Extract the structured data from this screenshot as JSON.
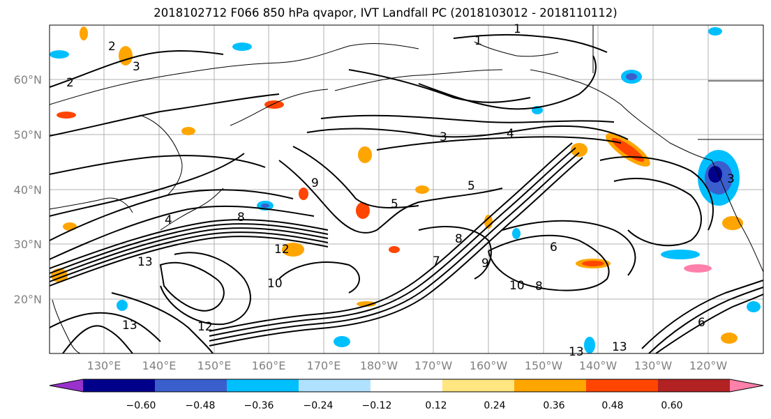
{
  "title": "2018102712 F066 850 hPa qvapor, IVT Landfall PC (2018103012 - 2018110112)",
  "map": {
    "lat_labels": [
      "60°N",
      "50°N",
      "40°N",
      "30°N",
      "20°N"
    ],
    "lon_labels": [
      "130°E",
      "140°E",
      "150°E",
      "160°E",
      "170°E",
      "180°W",
      "170°W",
      "160°W",
      "150°W",
      "140°W",
      "130°W",
      "120°W"
    ],
    "contour_labels": [
      "1",
      "1",
      "2",
      "2",
      "3",
      "3",
      "3",
      "4",
      "4",
      "5",
      "5",
      "6",
      "7",
      "8",
      "8",
      "9",
      "10",
      "10",
      "12",
      "12",
      "13",
      "13",
      "13",
      "13",
      "9",
      "8",
      "6"
    ]
  },
  "colorbar": {
    "colors": [
      "#9932cc",
      "#00008b",
      "#3a5fcd",
      "#00bfff",
      "#b0e2ff",
      "#ffffff",
      "#ffe680",
      "#ffa500",
      "#ff4500",
      "#b22222",
      "#ff80aa"
    ],
    "tick_labels": [
      "−0.60",
      "−0.48",
      "−0.36",
      "−0.24",
      "−0.12",
      "0.12",
      "0.24",
      "0.36",
      "0.48",
      "0.60"
    ]
  }
}
